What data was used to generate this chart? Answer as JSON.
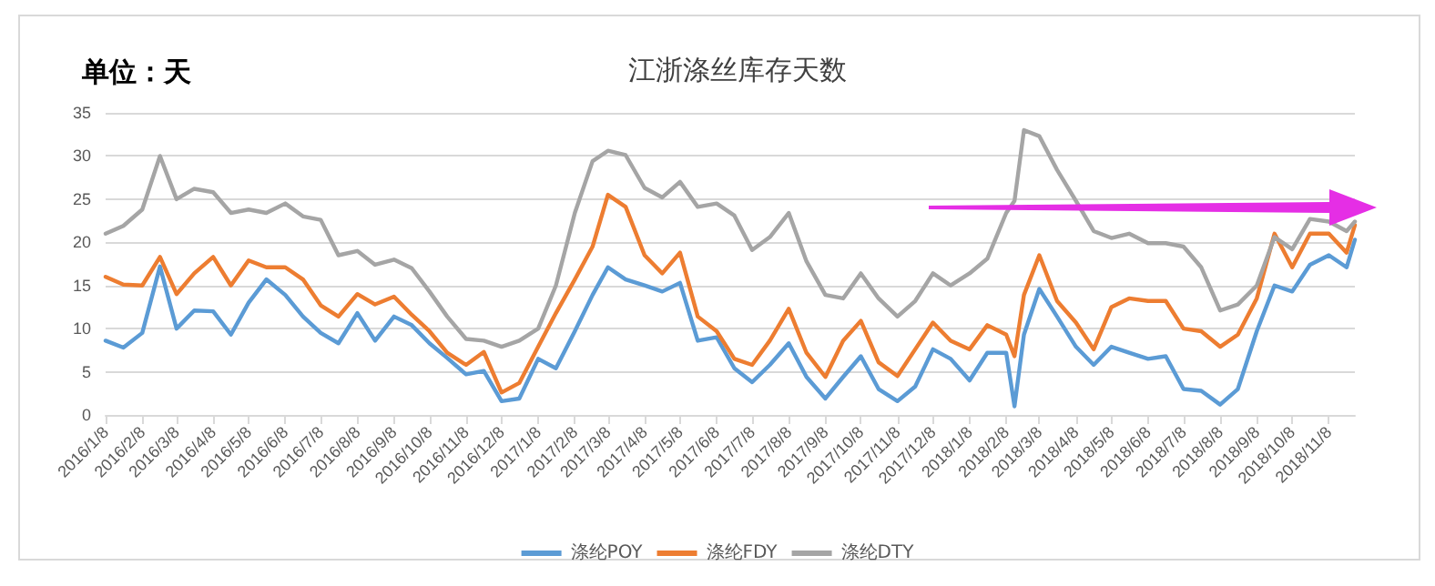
{
  "chart_data": {
    "type": "line",
    "title": "江浙涤丝库存天数",
    "subtitle": "单位：天",
    "x": [
      "2016-01-08",
      "2016-01-23",
      "2016-02-08",
      "2016-02-23",
      "2016-03-08",
      "2016-03-23",
      "2016-04-08",
      "2016-04-23",
      "2016-05-08",
      "2016-05-23",
      "2016-06-08",
      "2016-06-23",
      "2016-07-08",
      "2016-07-23",
      "2016-08-08",
      "2016-08-23",
      "2016-09-08",
      "2016-09-23",
      "2016-10-08",
      "2016-10-23",
      "2016-11-08",
      "2016-11-23",
      "2016-12-08",
      "2016-12-23",
      "2017-01-08",
      "2017-01-23",
      "2017-02-08",
      "2017-02-23",
      "2017-03-08",
      "2017-03-23",
      "2017-04-08",
      "2017-04-23",
      "2017-05-08",
      "2017-05-23",
      "2017-06-08",
      "2017-06-23",
      "2017-07-08",
      "2017-07-23",
      "2017-08-08",
      "2017-08-23",
      "2017-09-08",
      "2017-09-23",
      "2017-10-08",
      "2017-10-23",
      "2017-11-08",
      "2017-11-23",
      "2017-12-08",
      "2017-12-23",
      "2018-01-08",
      "2018-01-23",
      "2018-02-08",
      "2018-02-15",
      "2018-02-23",
      "2018-03-08",
      "2018-03-23",
      "2018-04-08",
      "2018-04-23",
      "2018-05-08",
      "2018-05-23",
      "2018-06-08",
      "2018-06-23",
      "2018-07-08",
      "2018-07-23",
      "2018-08-08",
      "2018-08-23",
      "2018-09-08",
      "2018-09-23",
      "2018-10-08",
      "2018-10-23",
      "2018-11-08",
      "2018-11-23",
      "2018-11-30"
    ],
    "series": [
      {
        "name": "涤纶POY",
        "color": "#5b9bd5",
        "values": [
          8.6,
          7.8,
          9.5,
          17.2,
          10,
          12.1,
          12,
          9.3,
          13,
          15.7,
          13.9,
          11.4,
          9.5,
          8.3,
          11.8,
          8.6,
          11.4,
          10.4,
          8.3,
          6.6,
          4.7,
          5.1,
          1.6,
          1.9,
          6.5,
          5.4,
          9.7,
          13.9,
          17.1,
          15.7,
          15,
          14.3,
          15.3,
          8.6,
          9,
          5.4,
          3.8,
          5.8,
          8.3,
          4.4,
          1.9,
          4.4,
          6.8,
          3,
          1.6,
          3.3,
          7.6,
          6.5,
          4,
          7.2,
          7.2,
          1,
          9.3,
          14.6,
          11.4,
          7.9,
          5.8,
          7.9,
          7.2,
          6.5,
          6.8,
          3,
          2.8,
          1.2,
          3,
          9.7,
          15,
          14.3,
          17.4,
          18.5,
          17.1,
          20.3
        ]
      },
      {
        "name": "涤纶FDY",
        "color": "#ed7d31",
        "values": [
          16,
          15.1,
          15,
          18.3,
          14,
          16.4,
          18.3,
          15,
          17.9,
          17.1,
          17.1,
          15.7,
          12.7,
          11.4,
          14,
          12.8,
          13.7,
          11.6,
          9.7,
          7.2,
          5.8,
          7.3,
          2.6,
          3.7,
          7.9,
          11.8,
          15.7,
          19.5,
          25.5,
          24.1,
          18.5,
          16.4,
          18.8,
          11.4,
          9.7,
          6.5,
          5.8,
          8.6,
          12.3,
          7.2,
          4.4,
          8.6,
          10.9,
          6.1,
          4.5,
          7.6,
          10.7,
          8.6,
          7.6,
          10.4,
          9.3,
          6.8,
          13.9,
          18.5,
          13.2,
          10.7,
          7.6,
          12.5,
          13.5,
          13.2,
          13.2,
          10,
          9.7,
          7.9,
          9.3,
          13.5,
          21,
          17.1,
          21,
          21,
          18.8,
          22
        ]
      },
      {
        "name": "涤纶DTY",
        "color": "#a5a5a5",
        "values": [
          21,
          21.9,
          23.8,
          30,
          25,
          26.2,
          25.8,
          23.4,
          23.8,
          23.4,
          24.5,
          23,
          22.6,
          18.5,
          19,
          17.4,
          18,
          17,
          14.3,
          11.4,
          8.8,
          8.6,
          7.9,
          8.6,
          10,
          15,
          23.4,
          29.4,
          30.6,
          30.1,
          26.3,
          25.2,
          27,
          24.1,
          24.5,
          23.1,
          19.1,
          20.6,
          23.4,
          17.8,
          13.9,
          13.5,
          16.4,
          13.5,
          11.4,
          13.2,
          16.4,
          15,
          16.4,
          18.1,
          23.4,
          24.8,
          33,
          32.3,
          28.4,
          24.8,
          21.3,
          20.5,
          21,
          19.9,
          19.9,
          19.5,
          17.1,
          12.1,
          12.8,
          15,
          20.6,
          19.2,
          22.7,
          22.4,
          21.3,
          22.4
        ]
      }
    ],
    "xlim": [
      "2016-01-08",
      "2018-11-30"
    ],
    "xticks": [
      {
        "value": "2016-01-08",
        "label": "2016/1/8"
      },
      {
        "value": "2016-02-08",
        "label": "2016/2/8"
      },
      {
        "value": "2016-03-08",
        "label": "2016/3/8"
      },
      {
        "value": "2016-04-08",
        "label": "2016/4/8"
      },
      {
        "value": "2016-05-08",
        "label": "2016/5/8"
      },
      {
        "value": "2016-06-08",
        "label": "2016/6/8"
      },
      {
        "value": "2016-07-08",
        "label": "2016/7/8"
      },
      {
        "value": "2016-08-08",
        "label": "2016/8/8"
      },
      {
        "value": "2016-09-08",
        "label": "2016/9/8"
      },
      {
        "value": "2016-10-08",
        "label": "2016/10/8"
      },
      {
        "value": "2016-11-08",
        "label": "2016/11/8"
      },
      {
        "value": "2016-12-08",
        "label": "2016/12/8"
      },
      {
        "value": "2017-01-08",
        "label": "2017/1/8"
      },
      {
        "value": "2017-02-08",
        "label": "2017/2/8"
      },
      {
        "value": "2017-03-08",
        "label": "2017/3/8"
      },
      {
        "value": "2017-04-08",
        "label": "2017/4/8"
      },
      {
        "value": "2017-05-08",
        "label": "2017/5/8"
      },
      {
        "value": "2017-06-08",
        "label": "2017/6/8"
      },
      {
        "value": "2017-07-08",
        "label": "2017/7/8"
      },
      {
        "value": "2017-08-08",
        "label": "2017/8/8"
      },
      {
        "value": "2017-09-08",
        "label": "2017/9/8"
      },
      {
        "value": "2017-10-08",
        "label": "2017/10/8"
      },
      {
        "value": "2017-11-08",
        "label": "2017/11/8"
      },
      {
        "value": "2017-12-08",
        "label": "2017/12/8"
      },
      {
        "value": "2018-01-08",
        "label": "2018/1/8"
      },
      {
        "value": "2018-02-08",
        "label": "2018/2/8"
      },
      {
        "value": "2018-03-08",
        "label": "2018/3/8"
      },
      {
        "value": "2018-04-08",
        "label": "2018/4/8"
      },
      {
        "value": "2018-05-08",
        "label": "2018/5/8"
      },
      {
        "value": "2018-06-08",
        "label": "2018/6/8"
      },
      {
        "value": "2018-07-08",
        "label": "2018/7/8"
      },
      {
        "value": "2018-08-08",
        "label": "2018/8/8"
      },
      {
        "value": "2018-09-08",
        "label": "2018/9/8"
      },
      {
        "value": "2018-10-08",
        "label": "2018/10/8"
      },
      {
        "value": "2018-11-08",
        "label": "2018/11/8"
      }
    ],
    "ylim": [
      0,
      35
    ],
    "yticks": [
      0,
      5,
      10,
      15,
      20,
      25,
      30,
      35
    ],
    "grid": "y",
    "legend": "bottom",
    "marker": "none",
    "line_style": "solid"
  }
}
